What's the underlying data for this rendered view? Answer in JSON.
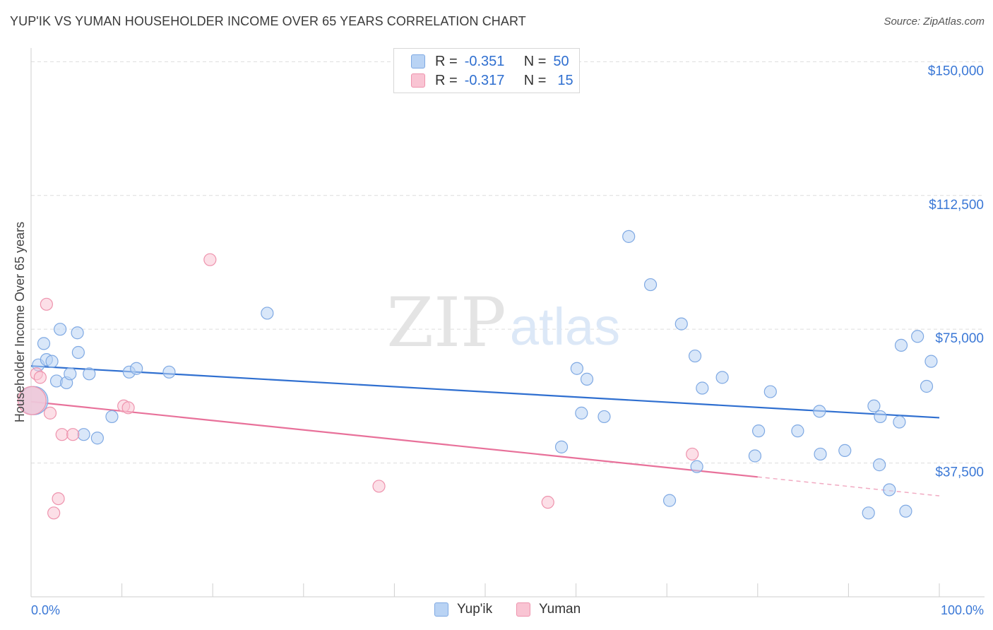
{
  "title": "YUP'IK VS YUMAN HOUSEHOLDER INCOME OVER 65 YEARS CORRELATION CHART",
  "source": "Source: ZipAtlas.com",
  "watermark": {
    "zip": "ZIP",
    "atlas": "atlas"
  },
  "legend": {
    "rows": [
      {
        "r_label": "R =",
        "r_value": "-0.351",
        "n_label": "N =",
        "n_value": "50"
      },
      {
        "r_label": "R =",
        "r_value": "-0.317",
        "n_label": "N =",
        "n_value": "15"
      }
    ]
  },
  "bottom_legend": {
    "series1": "Yup'ik",
    "series2": "Yuman"
  },
  "colors": {
    "blue_fill": "#b9d3f4",
    "blue_stroke": "#7fa9e3",
    "blue_line": "#2f6fd0",
    "pink_fill": "#f9c4d3",
    "pink_stroke": "#ee93ad",
    "pink_line": "#e8719a",
    "axis_label": "#3b78d6",
    "grid": "#dddddd"
  },
  "chart_data": {
    "type": "scatter",
    "title": "YUP'IK VS YUMAN HOUSEHOLDER INCOME OVER 65 YEARS CORRELATION CHART",
    "xlabel": "",
    "ylabel": "Householder Income Over 65 years",
    "xlim": [
      0,
      100
    ],
    "ylim": [
      0,
      157000
    ],
    "x_tick_labels": [
      "0.0%",
      "100.0%"
    ],
    "y_ticks": [
      37500,
      75000,
      112500,
      150000
    ],
    "y_tick_labels": [
      "$37,500",
      "$75,000",
      "$112,500",
      "$150,000"
    ],
    "series": [
      {
        "name": "Yup'ik",
        "r": -0.351,
        "n": 50,
        "points": [
          [
            0.8,
            65000
          ],
          [
            1.4,
            71000
          ],
          [
            1.7,
            66500
          ],
          [
            2.3,
            66000
          ],
          [
            2.8,
            60500
          ],
          [
            3.2,
            75000
          ],
          [
            3.9,
            60000
          ],
          [
            4.3,
            62500
          ],
          [
            5.2,
            68500
          ],
          [
            5.1,
            74000
          ],
          [
            5.8,
            45500
          ],
          [
            6.4,
            62500
          ],
          [
            7.3,
            44500
          ],
          [
            8.9,
            50500
          ],
          [
            10.8,
            63000
          ],
          [
            11.6,
            64000
          ],
          [
            15.2,
            63000
          ],
          [
            26.0,
            79500
          ],
          [
            58.4,
            42000
          ],
          [
            60.1,
            64000
          ],
          [
            60.6,
            51500
          ],
          [
            61.2,
            61000
          ],
          [
            63.1,
            50500
          ],
          [
            65.8,
            101000
          ],
          [
            68.2,
            87500
          ],
          [
            70.3,
            27000
          ],
          [
            71.6,
            76500
          ],
          [
            73.3,
            36500
          ],
          [
            73.1,
            67500
          ],
          [
            73.9,
            58500
          ],
          [
            76.1,
            61500
          ],
          [
            79.7,
            39500
          ],
          [
            80.1,
            46500
          ],
          [
            81.4,
            57500
          ],
          [
            84.4,
            46500
          ],
          [
            86.8,
            52000
          ],
          [
            86.9,
            40000
          ],
          [
            89.6,
            41000
          ],
          [
            92.2,
            23500
          ],
          [
            92.8,
            53500
          ],
          [
            93.4,
            37000
          ],
          [
            93.5,
            50500
          ],
          [
            94.5,
            30000
          ],
          [
            95.6,
            49000
          ],
          [
            95.8,
            70500
          ],
          [
            96.3,
            24000
          ],
          [
            97.6,
            73000
          ],
          [
            98.6,
            59000
          ],
          [
            99.1,
            66000
          ],
          [
            0.3,
            55000
          ]
        ],
        "trend": {
          "x": [
            0,
            100
          ],
          "y": [
            64700,
            50200
          ]
        }
      },
      {
        "name": "Yuman",
        "r": -0.317,
        "n": 15,
        "points": [
          [
            0.6,
            62500
          ],
          [
            1.0,
            61500
          ],
          [
            1.7,
            82000
          ],
          [
            2.1,
            51500
          ],
          [
            2.5,
            23500
          ],
          [
            3.0,
            27500
          ],
          [
            3.4,
            45500
          ],
          [
            4.6,
            45500
          ],
          [
            10.2,
            53500
          ],
          [
            10.7,
            53000
          ],
          [
            19.7,
            94500
          ],
          [
            38.3,
            31000
          ],
          [
            56.9,
            26500
          ],
          [
            72.8,
            40000
          ],
          [
            0.1,
            55000
          ]
        ],
        "trend": {
          "x": [
            0,
            80
          ],
          "y": [
            54700,
            33600
          ]
        },
        "trend_dashed": {
          "x": [
            80,
            100
          ],
          "y": [
            33600,
            28300
          ]
        }
      }
    ]
  }
}
